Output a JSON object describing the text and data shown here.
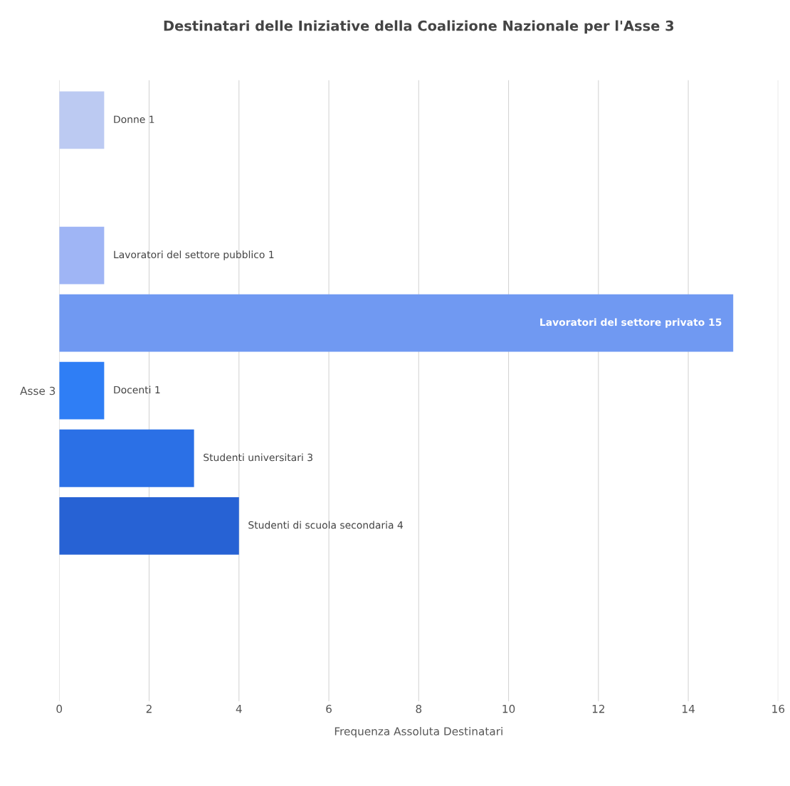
{
  "chart_data": {
    "type": "bar",
    "orientation": "horizontal",
    "title": "Destinatari delle Iniziative della Coalizione Nazionale per l'Asse 3",
    "xlabel": "Frequenza Assoluta Destinatari",
    "categories": [
      "Asse 3"
    ],
    "series": [
      {
        "color": "#bccaf2",
        "values": [
          1
        ],
        "value_labels": [
          "Donne 1"
        ]
      },
      {
        "values": [
          null
        ]
      },
      {
        "color": "#9fb5f5",
        "values": [
          1
        ],
        "value_labels": [
          "Lavoratori del settore pubblico 1"
        ]
      },
      {
        "color": "#7099f2",
        "values": [
          15
        ],
        "value_labels": [
          "Lavoratori del settore privato 15"
        ]
      },
      {
        "color": "#2f7ef5",
        "values": [
          1
        ],
        "value_labels": [
          "Docenti 1"
        ]
      },
      {
        "color": "#2b70e6",
        "values": [
          3
        ],
        "value_labels": [
          "Studenti universitari 3"
        ]
      },
      {
        "color": "#2762d4",
        "values": [
          4
        ],
        "value_labels": [
          "Studenti di scuola secondaria 4"
        ]
      },
      {
        "values": [
          null
        ]
      },
      {
        "values": [
          null
        ]
      }
    ],
    "xlim": [
      0,
      16
    ],
    "xticks": [
      0,
      2,
      4,
      6,
      8,
      10,
      12,
      14,
      16
    ],
    "grid": "x",
    "legend": false
  }
}
